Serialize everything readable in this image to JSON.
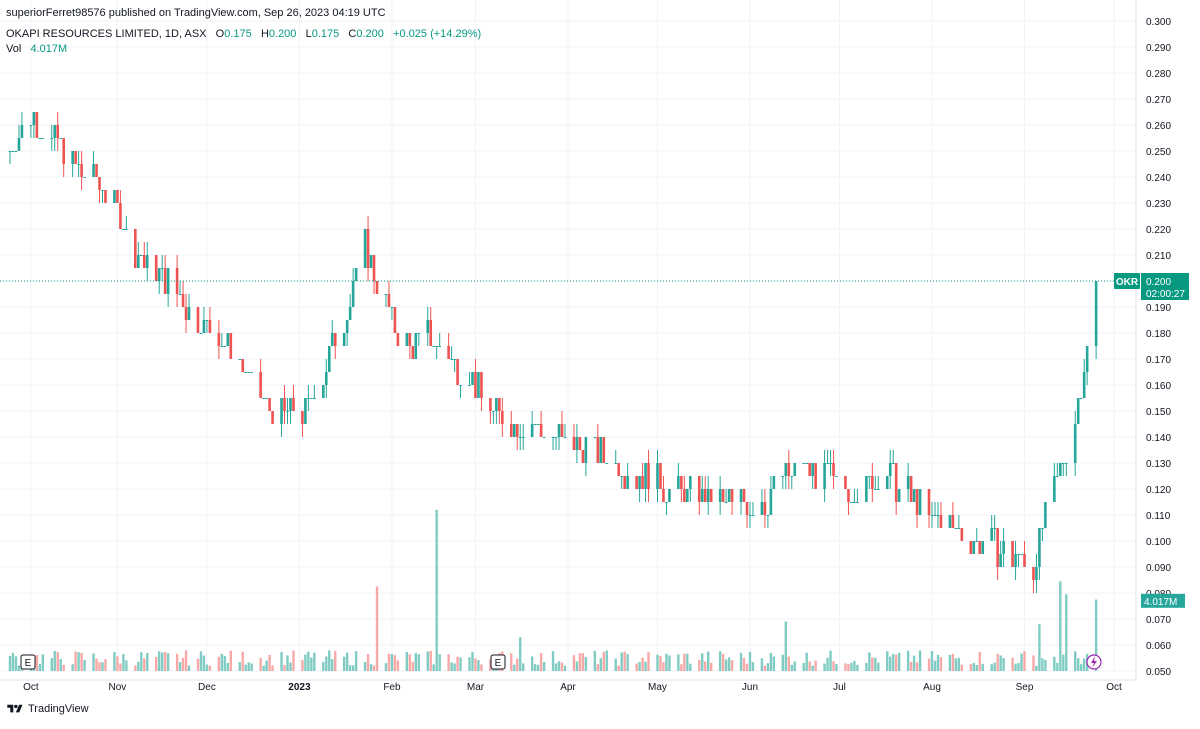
{
  "header": {
    "published": "superiorFerret98576 published on TradingView.com, Sep 26, 2023 04:19 UTC",
    "symbol": "OKAPI RESOURCES LIMITED, 1D, ASX",
    "open_label": "O",
    "open": "0.175",
    "high_label": "H",
    "high": "0.200",
    "low_label": "L",
    "low": "0.175",
    "close_label": "C",
    "close": "0.200",
    "change": "+0.025 (+14.29%)",
    "vol_label": "Vol",
    "vol_value": "4.017M"
  },
  "price_tag": {
    "ticker": "OKR",
    "price": "0.200",
    "countdown": "02:00:27"
  },
  "volume_tag": "4.017M",
  "footer": {
    "brand": "TradingView"
  },
  "event_marker": "E",
  "colors": {
    "up": "#26a69a",
    "down": "#ef5350",
    "up_vol": "#80cbc4",
    "down_vol": "#f7a9a7",
    "price_line": "#089981",
    "grid": "#f0f3fa"
  },
  "chart_data": {
    "type": "candlestick",
    "y_ticks": [
      "0.050",
      "0.060",
      "0.070",
      "0.080",
      "0.090",
      "0.100",
      "0.110",
      "0.120",
      "0.130",
      "0.140",
      "0.150",
      "0.160",
      "0.170",
      "0.180",
      "0.190",
      "0.200",
      "0.210",
      "0.220",
      "0.230",
      "0.240",
      "0.250",
      "0.260",
      "0.270",
      "0.280",
      "0.290",
      "0.300"
    ],
    "x_ticks": [
      "Oct",
      "Nov",
      "Dec",
      "2023",
      "Feb",
      "Mar",
      "Apr",
      "May",
      "Jun",
      "Jul",
      "Aug",
      "Sep",
      "Oct"
    ],
    "ylim": [
      0.05,
      0.3
    ],
    "last_price": 0.2,
    "anchors": [
      [
        "2022-09-26",
        0.25
      ],
      [
        "2022-10-03",
        0.265
      ],
      [
        "2022-10-10",
        0.255
      ],
      [
        "2022-10-17",
        0.245
      ],
      [
        "2022-10-24",
        0.24
      ],
      [
        "2022-10-31",
        0.23
      ],
      [
        "2022-11-07",
        0.21
      ],
      [
        "2022-11-14",
        0.205
      ],
      [
        "2022-11-21",
        0.195
      ],
      [
        "2022-11-28",
        0.185
      ],
      [
        "2022-12-05",
        0.18
      ],
      [
        "2022-12-12",
        0.17
      ],
      [
        "2022-12-19",
        0.155
      ],
      [
        "2022-12-26",
        0.148
      ],
      [
        "2023-01-03",
        0.15
      ],
      [
        "2023-01-09",
        0.165
      ],
      [
        "2023-01-16",
        0.185
      ],
      [
        "2023-01-23",
        0.215
      ],
      [
        "2023-01-30",
        0.19
      ],
      [
        "2023-02-06",
        0.175
      ],
      [
        "2023-02-13",
        0.18
      ],
      [
        "2023-02-20",
        0.17
      ],
      [
        "2023-02-27",
        0.165
      ],
      [
        "2023-03-06",
        0.15
      ],
      [
        "2023-03-13",
        0.145
      ],
      [
        "2023-03-20",
        0.145
      ],
      [
        "2023-03-27",
        0.14
      ],
      [
        "2023-04-10",
        0.135
      ],
      [
        "2023-04-24",
        0.125
      ],
      [
        "2023-05-08",
        0.12
      ],
      [
        "2023-05-22",
        0.115
      ],
      [
        "2023-06-05",
        0.115
      ],
      [
        "2023-06-19",
        0.13
      ],
      [
        "2023-07-03",
        0.12
      ],
      [
        "2023-07-17",
        0.125
      ],
      [
        "2023-07-31",
        0.11
      ],
      [
        "2023-08-14",
        0.1
      ],
      [
        "2023-08-28",
        0.095
      ],
      [
        "2023-09-04",
        0.09
      ],
      [
        "2023-09-11",
        0.12
      ],
      [
        "2023-09-18",
        0.145
      ],
      [
        "2023-09-22",
        0.175
      ],
      [
        "2023-09-25",
        0.2
      ]
    ],
    "volume_spikes": [
      [
        "2023-01-27",
        0.0825
      ],
      [
        "2023-02-16",
        0.112
      ],
      [
        "2023-03-16",
        0.063
      ],
      [
        "2023-06-13",
        0.069
      ],
      [
        "2023-09-06",
        0.068
      ],
      [
        "2023-09-13",
        0.0845
      ],
      [
        "2023-09-15",
        0.0795
      ],
      [
        "2023-09-25",
        0.0775
      ]
    ]
  }
}
